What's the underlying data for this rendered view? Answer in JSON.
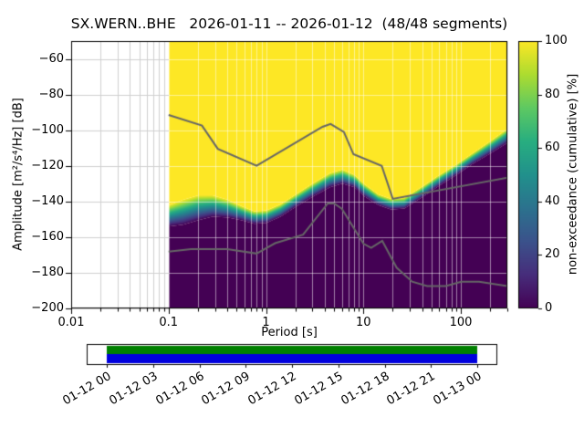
{
  "chart_data": {
    "type": "heatmap",
    "subtype": "ppsd-cumulative-plot",
    "title": "SX.WERN..BHE   2026-01-11 -- 2026-01-12  (48/48 segments)",
    "xlabel": "Period [s]",
    "ylabel": "Amplitude [m²/s⁴/Hz] [dB]",
    "xscale": "log",
    "xlim": [
      0.01,
      300
    ],
    "ylim": [
      -200,
      -50
    ],
    "xticks": [
      0.01,
      0.1,
      1,
      10,
      100
    ],
    "xtick_labels": [
      "0.01",
      "0.1",
      "1",
      "10",
      "100"
    ],
    "yticks": [
      -60,
      -80,
      -100,
      -120,
      -140,
      -160,
      -180,
      -200
    ],
    "ytick_labels": [
      "−60",
      "−80",
      "−100",
      "−120",
      "−140",
      "−160",
      "−180",
      "−200"
    ],
    "grid": true,
    "colorbar": {
      "label": "non-exceedance (cumulative) [%]",
      "ticks": [
        0,
        20,
        40,
        60,
        80,
        100
      ],
      "tick_labels": [
        "0",
        "20",
        "40",
        "60",
        "80",
        "100"
      ],
      "lim": [
        0,
        100
      ],
      "colormap": "viridis",
      "stops": [
        {
          "t": 0,
          "color": "#440154"
        },
        {
          "t": 0.125,
          "color": "#472d7b"
        },
        {
          "t": 0.25,
          "color": "#3b528b"
        },
        {
          "t": 0.375,
          "color": "#2c728e"
        },
        {
          "t": 0.5,
          "color": "#21918c"
        },
        {
          "t": 0.625,
          "color": "#28ae80"
        },
        {
          "t": 0.75,
          "color": "#5ec962"
        },
        {
          "t": 0.875,
          "color": "#addc30"
        },
        {
          "t": 1,
          "color": "#fde725"
        }
      ]
    },
    "heatmap": {
      "value_range": [
        0,
        100
      ],
      "data_period_range": [
        0.1,
        300
      ],
      "fill_above": "#fde725",
      "fill_below": "#440154",
      "transition_periods": [
        0.1,
        0.14,
        0.2,
        0.28,
        0.4,
        0.55,
        0.75,
        1.0,
        1.4,
        2.0,
        3.0,
        4.5,
        6.0,
        8.0,
        10,
        14,
        19,
        26,
        40,
        60,
        90,
        130,
        200,
        300
      ],
      "transition_center_db": [
        -148,
        -146,
        -143.5,
        -142.5,
        -144,
        -146.5,
        -149,
        -148.5,
        -145,
        -139.5,
        -133.5,
        -128,
        -126,
        -128.5,
        -133.5,
        -139,
        -141.5,
        -141,
        -134.5,
        -128,
        -122,
        -116,
        -109.5,
        -103
      ],
      "transition_width_db": [
        12,
        14,
        14,
        12,
        10,
        8,
        7,
        7,
        7,
        7,
        7.5,
        8,
        8,
        7,
        7,
        6,
        6,
        6,
        6,
        6,
        6,
        6,
        7,
        8
      ]
    },
    "noise_models": [
      {
        "name": "noise-model-high",
        "color": "#666666",
        "periods": [
          0.1,
          0.22,
          0.32,
          0.8,
          3.8,
          4.6,
          6.3,
          7.9,
          15.4,
          20.0,
          300.0
        ],
        "db": [
          -91.5,
          -97.4,
          -110.5,
          -120.0,
          -98.1,
          -96.5,
          -101.0,
          -113.5,
          -120.0,
          -138.5,
          -126.7
        ]
      },
      {
        "name": "noise-model-low",
        "color": "#666666",
        "periods": [
          0.1,
          0.17,
          0.4,
          0.8,
          1.24,
          2.4,
          4.3,
          5.0,
          6.0,
          10.0,
          12.0,
          15.6,
          21.9,
          31.6,
          45.0,
          70.0,
          101.0,
          154.0,
          300.0
        ],
        "db": [
          -168.1,
          -166.7,
          -166.7,
          -169.2,
          -163.4,
          -158.6,
          -141.1,
          -141.1,
          -144.0,
          -163.7,
          -166.0,
          -162.1,
          -177.1,
          -185.0,
          -187.5,
          -187.5,
          -185.0,
          -185.0,
          -187.4
        ]
      }
    ],
    "timeline": {
      "tick_labels": [
        "01-12 00",
        "01-12 03",
        "01-12 06",
        "01-12 09",
        "01-12 12",
        "01-12 15",
        "01-12 18",
        "01-12 21",
        "01-13 00"
      ],
      "bar_colors": {
        "top": "#008000",
        "bottom": "#0000dd"
      },
      "coverage": "full"
    }
  }
}
